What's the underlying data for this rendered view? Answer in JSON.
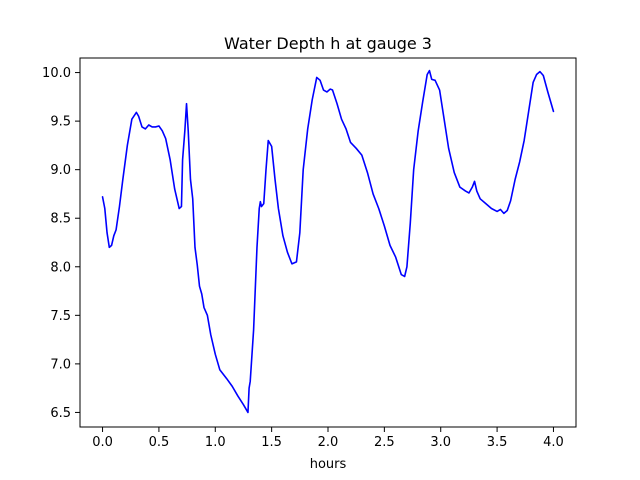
{
  "chart_data": {
    "type": "line",
    "title": "Water Depth h at gauge 3",
    "xlabel": "hours",
    "ylabel": "",
    "xlim": [
      -0.2,
      4.2
    ],
    "ylim": [
      6.35,
      10.15
    ],
    "xticks": [
      0.0,
      0.5,
      1.0,
      1.5,
      2.0,
      2.5,
      3.0,
      3.5,
      4.0
    ],
    "xtick_labels": [
      "0.0",
      "0.5",
      "1.0",
      "1.5",
      "2.0",
      "2.5",
      "3.0",
      "3.5",
      "4.0"
    ],
    "yticks": [
      6.5,
      7.0,
      7.5,
      8.0,
      8.5,
      9.0,
      9.5,
      10.0
    ],
    "ytick_labels": [
      "6.5",
      "7.0",
      "7.5",
      "8.0",
      "8.5",
      "9.0",
      "9.5",
      "10.0"
    ],
    "grid": false,
    "legend": "none",
    "series": [
      {
        "color": "#0000ff",
        "x": [
          0.0,
          0.02,
          0.04,
          0.06,
          0.08,
          0.1,
          0.12,
          0.15,
          0.18,
          0.22,
          0.26,
          0.3,
          0.32,
          0.35,
          0.38,
          0.41,
          0.44,
          0.47,
          0.5,
          0.53,
          0.56,
          0.6,
          0.64,
          0.68,
          0.7,
          0.71,
          0.73,
          0.745,
          0.76,
          0.78,
          0.8,
          0.82,
          0.84,
          0.86,
          0.88,
          0.9,
          0.93,
          0.96,
          1.0,
          1.04,
          1.1,
          1.15,
          1.2,
          1.25,
          1.29,
          1.3,
          1.31,
          1.34,
          1.37,
          1.39,
          1.4,
          1.41,
          1.43,
          1.45,
          1.47,
          1.5,
          1.53,
          1.56,
          1.6,
          1.64,
          1.68,
          1.72,
          1.75,
          1.78,
          1.82,
          1.86,
          1.9,
          1.93,
          1.96,
          1.99,
          2.02,
          2.04,
          2.08,
          2.12,
          2.16,
          2.2,
          2.25,
          2.3,
          2.35,
          2.4,
          2.45,
          2.5,
          2.55,
          2.6,
          2.65,
          2.68,
          2.7,
          2.73,
          2.76,
          2.8,
          2.84,
          2.88,
          2.9,
          2.92,
          2.95,
          2.99,
          3.03,
          3.07,
          3.12,
          3.17,
          3.22,
          3.25,
          3.28,
          3.3,
          3.32,
          3.35,
          3.4,
          3.45,
          3.5,
          3.53,
          3.56,
          3.59,
          3.62,
          3.66,
          3.7,
          3.74,
          3.78,
          3.82,
          3.85,
          3.88,
          3.91,
          3.95,
          4.0
        ],
        "values": [
          8.72,
          8.6,
          8.35,
          8.2,
          8.22,
          8.32,
          8.38,
          8.62,
          8.9,
          9.25,
          9.52,
          9.59,
          9.55,
          9.44,
          9.42,
          9.46,
          9.44,
          9.44,
          9.45,
          9.4,
          9.32,
          9.1,
          8.8,
          8.6,
          8.62,
          9.1,
          9.4,
          9.68,
          9.4,
          8.9,
          8.7,
          8.2,
          8.02,
          7.8,
          7.72,
          7.58,
          7.5,
          7.3,
          7.1,
          6.94,
          6.85,
          6.77,
          6.67,
          6.58,
          6.5,
          6.75,
          6.82,
          7.35,
          8.2,
          8.6,
          8.67,
          8.62,
          8.65,
          9.0,
          9.3,
          9.24,
          8.9,
          8.6,
          8.32,
          8.15,
          8.03,
          8.05,
          8.35,
          9.0,
          9.42,
          9.72,
          9.95,
          9.92,
          9.82,
          9.8,
          9.83,
          9.82,
          9.68,
          9.52,
          9.42,
          9.28,
          9.22,
          9.15,
          8.97,
          8.75,
          8.6,
          8.42,
          8.22,
          8.1,
          7.92,
          7.9,
          8.0,
          8.45,
          9.0,
          9.4,
          9.7,
          9.98,
          10.02,
          9.93,
          9.92,
          9.82,
          9.52,
          9.22,
          8.97,
          8.82,
          8.78,
          8.76,
          8.82,
          8.88,
          8.78,
          8.7,
          8.65,
          8.6,
          8.57,
          8.59,
          8.55,
          8.58,
          8.68,
          8.9,
          9.08,
          9.3,
          9.6,
          9.9,
          9.98,
          10.01,
          9.97,
          9.8,
          9.6
        ]
      }
    ]
  }
}
